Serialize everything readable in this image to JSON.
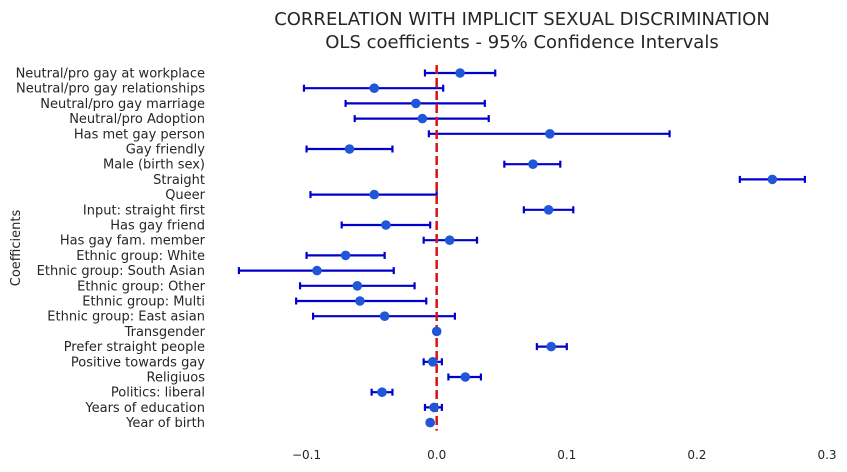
{
  "chart_data": {
    "type": "errorbar",
    "title": "CORRELATION WITH IMPLICIT SEXUAL DISCRIMINATION",
    "subtitle": "OLS coefficients - 95% Confidence Intervals",
    "ylabel": "Coefficients",
    "xlabel": "",
    "xlim": [
      -0.165,
      0.3
    ],
    "xticks": [
      -0.1,
      0.0,
      0.1,
      0.2,
      0.3
    ],
    "xtick_labels": [
      "−0.1",
      "0.0",
      "0.1",
      "0.2",
      "0.3"
    ],
    "reference_line": 0,
    "grid": false,
    "colors": {
      "line": "#0000cc",
      "point": "#1f57d6",
      "reference": "#dd1111"
    },
    "points": [
      {
        "label": "Neutral/pro gay at workplace",
        "value": 0.018,
        "low": -0.009,
        "high": 0.045
      },
      {
        "label": "Neutral/pro gay relationships",
        "value": -0.048,
        "low": -0.102,
        "high": 0.005
      },
      {
        "label": "Neutral/pro gay marriage",
        "value": -0.016,
        "low": -0.07,
        "high": 0.037
      },
      {
        "label": "Neutral/pro Adoption",
        "value": -0.011,
        "low": -0.063,
        "high": 0.04
      },
      {
        "label": "Has met gay person",
        "value": 0.087,
        "low": -0.006,
        "high": 0.179
      },
      {
        "label": "Gay friendly",
        "value": -0.067,
        "low": -0.1,
        "high": -0.034
      },
      {
        "label": "Male (birth sex)",
        "value": 0.074,
        "low": 0.052,
        "high": 0.095
      },
      {
        "label": "Straight",
        "value": 0.258,
        "low": 0.233,
        "high": 0.283
      },
      {
        "label": "Queer",
        "value": -0.048,
        "low": -0.097,
        "high": 0.0
      },
      {
        "label": "Input: straight first",
        "value": 0.086,
        "low": 0.067,
        "high": 0.105
      },
      {
        "label": "Has gay friend",
        "value": -0.039,
        "low": -0.073,
        "high": -0.005
      },
      {
        "label": "Has gay fam. member",
        "value": 0.01,
        "low": -0.01,
        "high": 0.031
      },
      {
        "label": "Ethnic group: White",
        "value": -0.07,
        "low": -0.1,
        "high": -0.04
      },
      {
        "label": "Ethnic group: South Asian",
        "value": -0.092,
        "low": -0.152,
        "high": -0.033
      },
      {
        "label": "Ethnic group: Other",
        "value": -0.061,
        "low": -0.105,
        "high": -0.017
      },
      {
        "label": "Ethnic group: Multi",
        "value": -0.059,
        "low": -0.108,
        "high": -0.008
      },
      {
        "label": "Ethnic group: East asian",
        "value": -0.04,
        "low": -0.095,
        "high": 0.014
      },
      {
        "label": "Transgender",
        "value": 0.0,
        "low": -0.002,
        "high": 0.002
      },
      {
        "label": "Prefer straight people",
        "value": 0.088,
        "low": 0.077,
        "high": 0.1
      },
      {
        "label": "Positive towards gay",
        "value": -0.003,
        "low": -0.01,
        "high": 0.004
      },
      {
        "label": "Religiuos",
        "value": 0.022,
        "low": 0.009,
        "high": 0.034
      },
      {
        "label": "Politics: liberal",
        "value": -0.042,
        "low": -0.05,
        "high": -0.034
      },
      {
        "label": "Years of education",
        "value": -0.002,
        "low": -0.009,
        "high": 0.004
      },
      {
        "label": "Year of birth",
        "value": -0.005,
        "low": -0.007,
        "high": -0.003
      }
    ]
  }
}
